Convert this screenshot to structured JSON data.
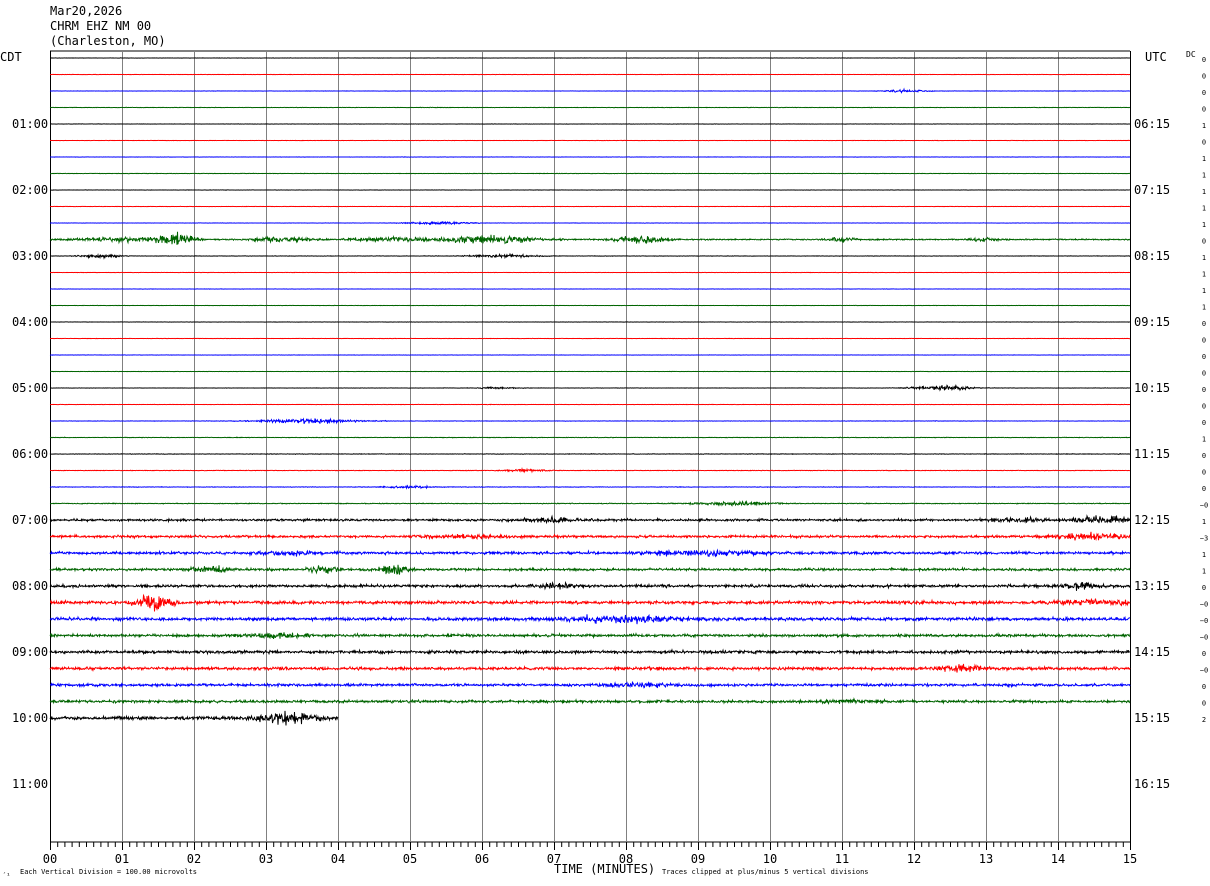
{
  "header": {
    "date": "Mar20,2026",
    "station": "CHRM EHZ NM 00",
    "location": "(Charleston, MO)"
  },
  "left_tz": "CDT",
  "right_tz": "UTC",
  "dc_label": "DC",
  "footer": {
    "scale_note": "Each Vertical Division =  100.00 microvolts",
    "clip_note": "Traces clipped at plus/minus 5 vertical divisions",
    "corner_mark": "´¹"
  },
  "chart_data": {
    "type": "line",
    "xlabel": "TIME (MINUTES)",
    "x_ticks": [
      "00",
      "01",
      "02",
      "03",
      "04",
      "05",
      "06",
      "07",
      "08",
      "09",
      "10",
      "11",
      "12",
      "13",
      "14",
      "15"
    ],
    "xlim": [
      0,
      15
    ],
    "left_labels": [
      "01:00",
      "02:00",
      "03:00",
      "04:00",
      "05:00",
      "06:00",
      "07:00",
      "08:00",
      "09:00",
      "10:00",
      "11:00"
    ],
    "right_labels": [
      "06:15",
      "07:15",
      "08:15",
      "09:15",
      "10:15",
      "11:15",
      "12:15",
      "13:15",
      "14:15",
      "15:15",
      "16:15"
    ],
    "trace_colors": [
      "#000000",
      "#ff0000",
      "#0000ff",
      "#006400"
    ],
    "dc_offsets": [
      "0",
      "0",
      "0",
      "0",
      "1",
      "0",
      "1",
      "1",
      "1",
      "1",
      "1",
      "0",
      "1",
      "1",
      "1",
      "1",
      "0",
      "0",
      "0",
      "0",
      "0",
      "0",
      "0",
      "1",
      "0",
      "0",
      "0",
      "−0",
      "1",
      "−3",
      "1",
      "1",
      "0",
      "−0",
      "−0",
      "−0",
      "0",
      "−0",
      "0",
      "0",
      "2"
    ],
    "traces": [
      {
        "level": 0.03,
        "events": []
      },
      {
        "level": 0.03,
        "events": []
      },
      {
        "level": 0.03,
        "events": [
          {
            "t": 11.9,
            "amp": 0.25,
            "w": 0.4
          }
        ]
      },
      {
        "level": 0.04,
        "events": []
      },
      {
        "level": 0.03,
        "events": []
      },
      {
        "level": 0.03,
        "events": []
      },
      {
        "level": 0.03,
        "events": []
      },
      {
        "level": 0.04,
        "events": []
      },
      {
        "level": 0.03,
        "events": []
      },
      {
        "level": 0.03,
        "events": []
      },
      {
        "level": 0.03,
        "events": [
          {
            "t": 5.4,
            "amp": 0.25,
            "w": 0.6
          }
        ]
      },
      {
        "level": 0.12,
        "events": [
          {
            "t": 1.0,
            "amp": 0.45,
            "w": 0.8
          },
          {
            "t": 1.75,
            "amp": 1.3,
            "w": 0.35
          },
          {
            "t": 3.2,
            "amp": 0.4,
            "w": 0.6
          },
          {
            "t": 4.8,
            "amp": 0.45,
            "w": 0.8
          },
          {
            "t": 6.1,
            "amp": 0.7,
            "w": 0.9
          },
          {
            "t": 8.2,
            "amp": 0.55,
            "w": 0.5
          },
          {
            "t": 11.0,
            "amp": 0.35,
            "w": 0.3
          },
          {
            "t": 13.0,
            "amp": 0.3,
            "w": 0.3
          }
        ]
      },
      {
        "level": 0.04,
        "events": [
          {
            "t": 0.7,
            "amp": 0.3,
            "w": 0.4
          },
          {
            "t": 6.3,
            "amp": 0.3,
            "w": 0.6
          }
        ]
      },
      {
        "level": 0.03,
        "events": []
      },
      {
        "level": 0.03,
        "events": []
      },
      {
        "level": 0.03,
        "events": []
      },
      {
        "level": 0.03,
        "events": []
      },
      {
        "level": 0.03,
        "events": []
      },
      {
        "level": 0.03,
        "events": []
      },
      {
        "level": 0.03,
        "events": []
      },
      {
        "level": 0.03,
        "events": [
          {
            "t": 6.2,
            "amp": 0.2,
            "w": 0.4
          },
          {
            "t": 12.4,
            "amp": 0.45,
            "w": 0.6
          }
        ]
      },
      {
        "level": 0.03,
        "events": []
      },
      {
        "level": 0.04,
        "events": [
          {
            "t": 3.6,
            "amp": 0.4,
            "w": 1.0
          }
        ]
      },
      {
        "level": 0.05,
        "events": []
      },
      {
        "level": 0.05,
        "events": []
      },
      {
        "level": 0.05,
        "events": [
          {
            "t": 6.6,
            "amp": 0.25,
            "w": 0.4
          }
        ]
      },
      {
        "level": 0.05,
        "events": [
          {
            "t": 5.0,
            "amp": 0.2,
            "w": 0.5
          }
        ]
      },
      {
        "level": 0.07,
        "events": [
          {
            "t": 9.5,
            "amp": 0.35,
            "w": 0.8
          }
        ]
      },
      {
        "level": 0.2,
        "events": [
          {
            "t": 6.9,
            "amp": 0.35,
            "w": 0.6
          },
          {
            "t": 13.4,
            "amp": 0.3,
            "w": 0.6
          },
          {
            "t": 14.6,
            "amp": 0.5,
            "w": 0.7
          }
        ]
      },
      {
        "level": 0.22,
        "events": [
          {
            "t": 5.9,
            "amp": 0.3,
            "w": 0.8
          },
          {
            "t": 14.5,
            "amp": 0.45,
            "w": 0.8
          }
        ]
      },
      {
        "level": 0.24,
        "events": [
          {
            "t": 9.1,
            "amp": 0.45,
            "w": 1.0
          },
          {
            "t": 3.3,
            "amp": 0.3,
            "w": 0.6
          }
        ]
      },
      {
        "level": 0.22,
        "events": [
          {
            "t": 2.2,
            "amp": 0.55,
            "w": 0.4
          },
          {
            "t": 3.8,
            "amp": 0.55,
            "w": 0.3
          },
          {
            "t": 4.8,
            "amp": 1.1,
            "w": 0.25
          }
        ]
      },
      {
        "level": 0.24,
        "events": [
          {
            "t": 7.0,
            "amp": 0.45,
            "w": 0.4
          },
          {
            "t": 14.3,
            "amp": 0.9,
            "w": 0.3
          }
        ]
      },
      {
        "level": 0.28,
        "events": [
          {
            "t": 1.45,
            "amp": 1.4,
            "w": 0.35
          },
          {
            "t": 14.5,
            "amp": 0.4,
            "w": 0.8
          }
        ]
      },
      {
        "level": 0.28,
        "events": [
          {
            "t": 8.0,
            "amp": 0.55,
            "w": 1.2
          }
        ]
      },
      {
        "level": 0.24,
        "events": [
          {
            "t": 3.2,
            "amp": 0.4,
            "w": 0.6
          }
        ]
      },
      {
        "level": 0.27,
        "events": []
      },
      {
        "level": 0.26,
        "events": [
          {
            "t": 12.7,
            "amp": 0.5,
            "w": 0.5
          }
        ]
      },
      {
        "level": 0.24,
        "events": [
          {
            "t": 8.2,
            "amp": 0.35,
            "w": 0.6
          }
        ]
      },
      {
        "level": 0.24,
        "events": [
          {
            "t": 11.1,
            "amp": 0.3,
            "w": 0.5
          }
        ]
      },
      {
        "level": 0.3,
        "end": 4.0,
        "events": [
          {
            "t": 3.3,
            "amp": 0.9,
            "w": 0.6
          }
        ]
      }
    ]
  }
}
